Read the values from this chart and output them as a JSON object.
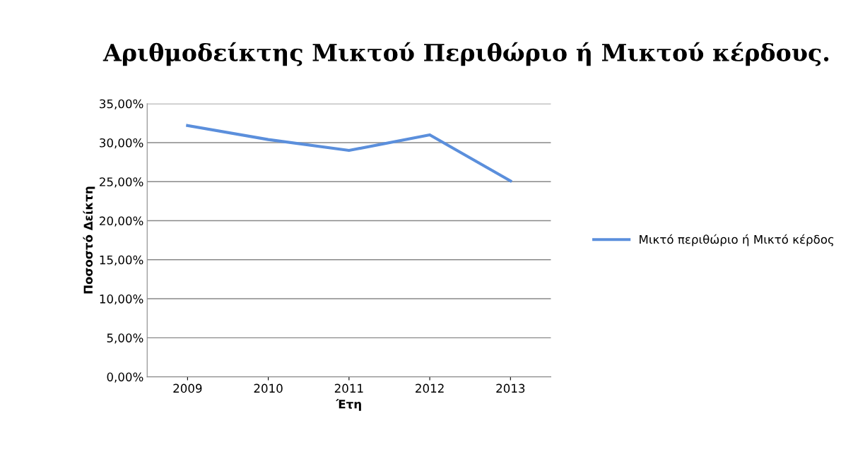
{
  "chart_data": {
    "type": "line",
    "title": "Αριθμοδείκτης Μικτού Περιθώριο ή Μικτού κέρδους.",
    "xlabel": "Έτη",
    "ylabel": "Ποσοστό Δείκτη",
    "categories": [
      "2009",
      "2010",
      "2011",
      "2012",
      "2013"
    ],
    "series": [
      {
        "name": "Μικτό περιθώριο ή Μικτό κέρδος",
        "color": "#5b8fdc",
        "values": [
          32.2,
          30.4,
          29.0,
          31.0,
          25.1
        ]
      }
    ],
    "ylim": [
      0,
      35
    ],
    "yticks": [
      {
        "value": 0,
        "label": "0,00%"
      },
      {
        "value": 5,
        "label": "5,00%"
      },
      {
        "value": 10,
        "label": "10,00%"
      },
      {
        "value": 15,
        "label": "15,00%"
      },
      {
        "value": 20,
        "label": "20,00%"
      },
      {
        "value": 25,
        "label": "25,00%"
      },
      {
        "value": 30,
        "label": "30,00%"
      },
      {
        "value": 35,
        "label": "35,00%"
      }
    ],
    "grid": "y",
    "legend": "right",
    "marker": "none",
    "line_style": "solid"
  }
}
